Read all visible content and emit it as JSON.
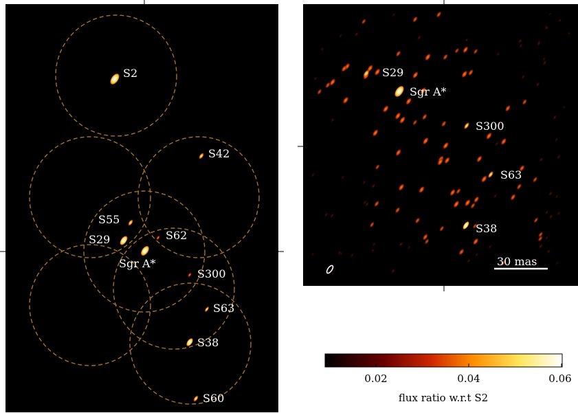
{
  "left_panel": {
    "labels": {
      "s2": "S2",
      "s42": "S42",
      "s55": "S55",
      "s29": "S29",
      "s62": "S62",
      "sgra": "Sgr A*",
      "s300": "S300",
      "s63": "S63",
      "s38": "S38",
      "s60": "S60"
    }
  },
  "right_panel": {
    "labels": {
      "s29": "S29",
      "sgra": "Sgr A*",
      "s300": "S300",
      "s63": "S63",
      "s38": "S38"
    },
    "scale_bar_label": "30 mas"
  },
  "colorbar": {
    "ticks": [
      "0.02",
      "0.04",
      "0.06"
    ],
    "label": "flux ratio w.r.t S2",
    "range": [
      0.01,
      0.06
    ],
    "colormap": "afmhot"
  },
  "colors": {
    "background": "#000000",
    "circle_stroke": "#a8702a",
    "label_text": "#ffffff"
  }
}
